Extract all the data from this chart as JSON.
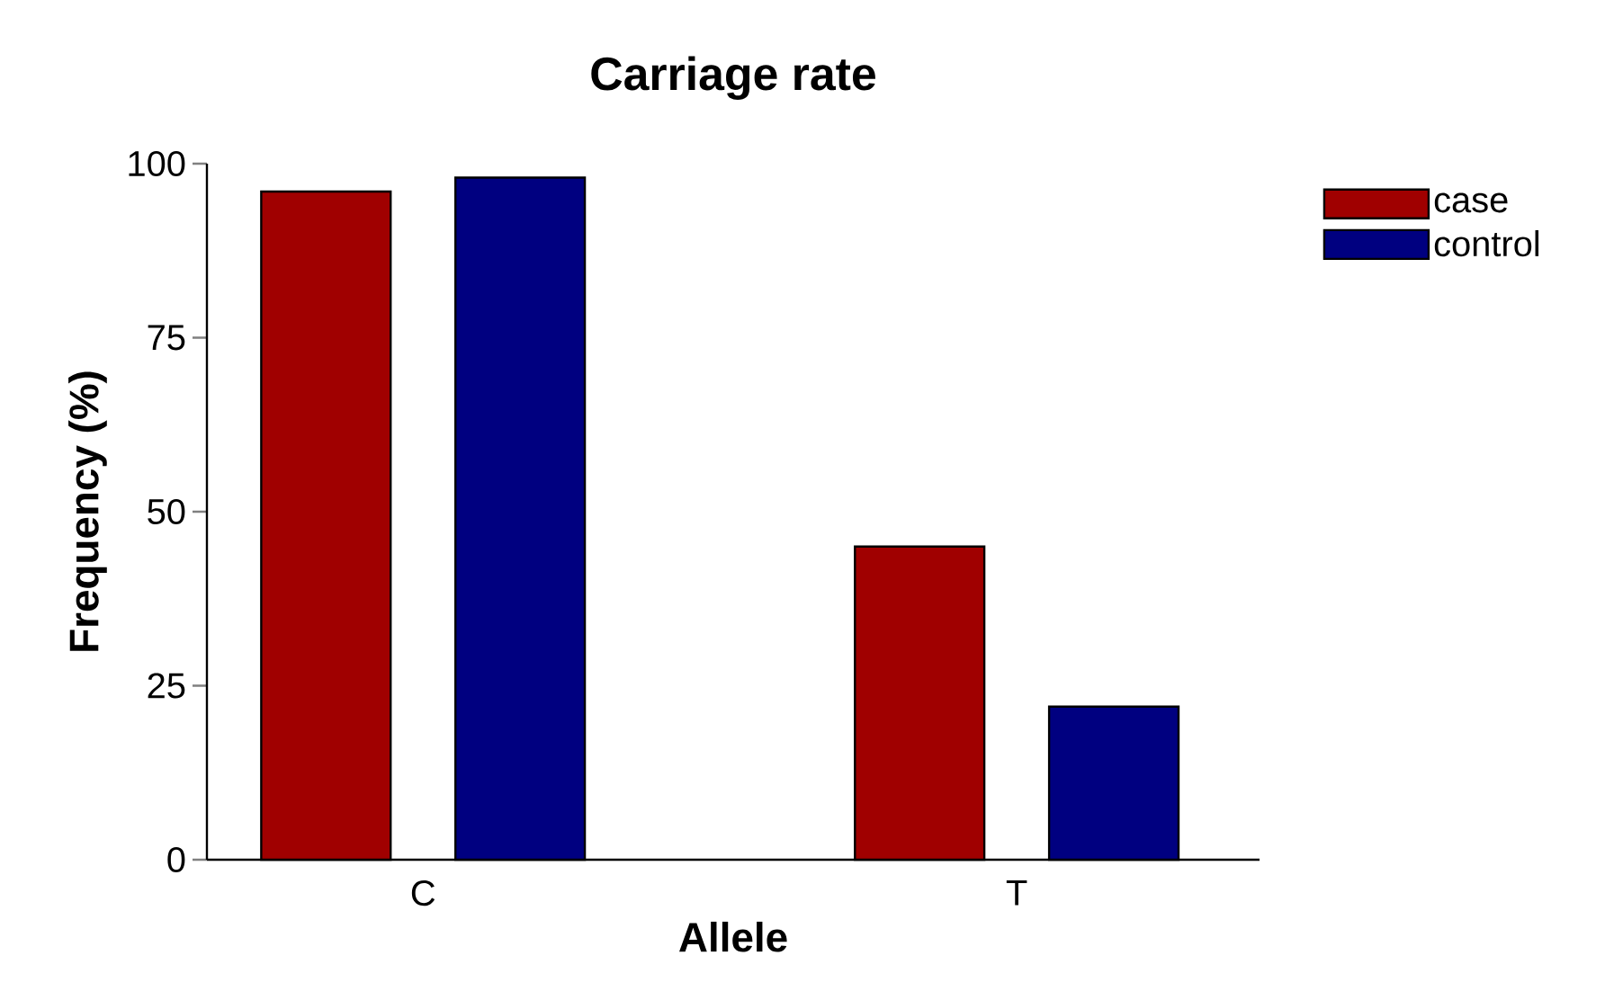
{
  "chart_data": {
    "type": "bar",
    "title": "Carriage rate",
    "xlabel": "Allele",
    "ylabel": "Frequency (%)",
    "categories": [
      "C",
      "T"
    ],
    "series": [
      {
        "name": "case",
        "color": "#a00000",
        "values": [
          96,
          45
        ]
      },
      {
        "name": "control",
        "color": "#000080",
        "values": [
          98,
          22
        ]
      }
    ],
    "ylim": [
      0,
      100
    ],
    "yticks": [
      0,
      25,
      50,
      75,
      100
    ],
    "legend": "top right"
  }
}
